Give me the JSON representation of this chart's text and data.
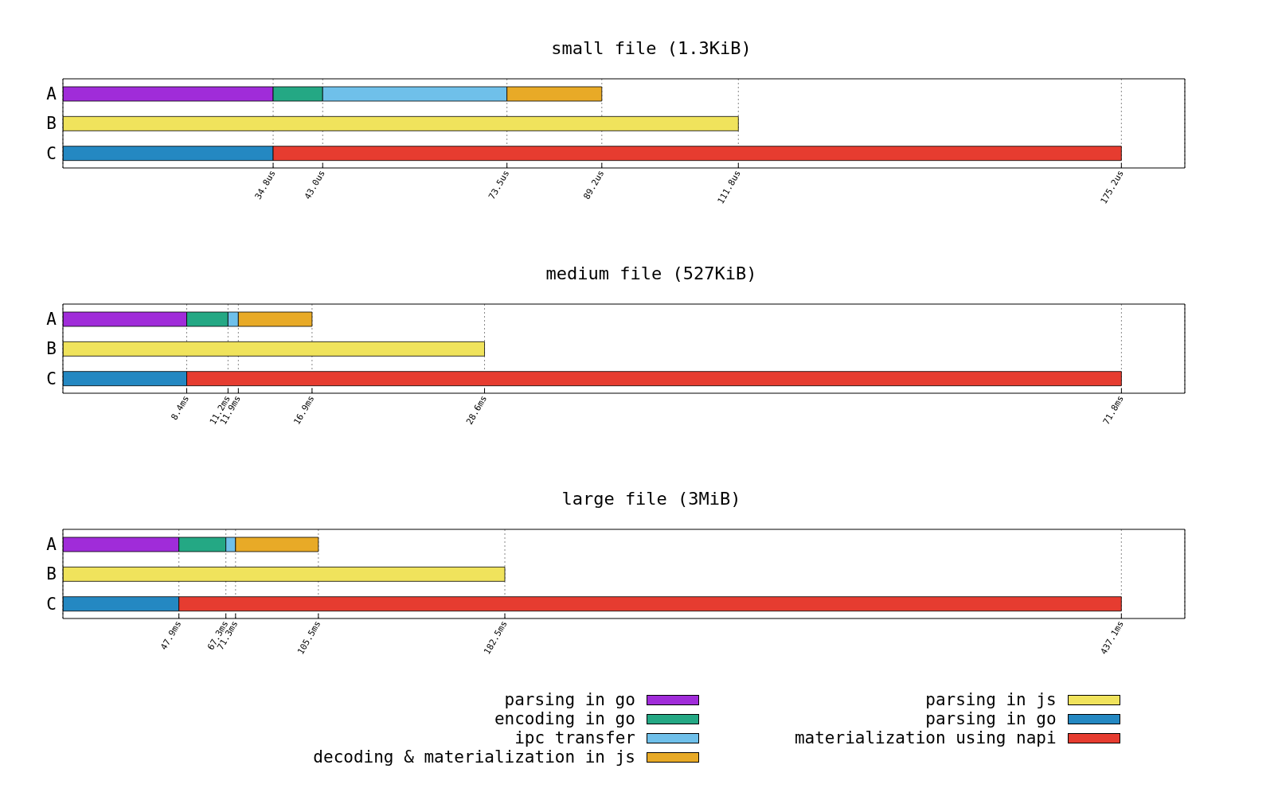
{
  "chart_data": [
    {
      "type": "bar",
      "title": "small file (1.3KiB)",
      "orientation": "horizontal",
      "stacked": true,
      "categories": [
        "A",
        "B",
        "C"
      ],
      "xlim": [
        0,
        185.7
      ],
      "xticks": [
        {
          "value": 34.8,
          "label": "34.8us"
        },
        {
          "value": 43.0,
          "label": "43.0us"
        },
        {
          "value": 73.5,
          "label": "73.5us"
        },
        {
          "value": 89.2,
          "label": "89.2us"
        },
        {
          "value": 111.8,
          "label": "111.8us"
        },
        {
          "value": 175.2,
          "label": "175.2us"
        }
      ],
      "grid": "x",
      "legend": false,
      "series": [
        {
          "color": "#a02cd9",
          "values": [
            34.8,
            null,
            null
          ]
        },
        {
          "color": "#24a884",
          "values": [
            8.2,
            null,
            null
          ]
        },
        {
          "color": "#6fc0ea",
          "values": [
            30.5,
            null,
            null
          ]
        },
        {
          "color": "#e8aa27",
          "values": [
            15.7,
            null,
            null
          ]
        },
        {
          "color": "#f0e35c",
          "values": [
            null,
            111.8,
            null
          ]
        },
        {
          "color": "#2488c2",
          "values": [
            null,
            null,
            34.8
          ]
        },
        {
          "color": "#e63c30",
          "values": [
            null,
            null,
            140.4
          ]
        }
      ]
    },
    {
      "type": "bar",
      "title": "medium file (527KiB)",
      "orientation": "horizontal",
      "stacked": true,
      "categories": [
        "A",
        "B",
        "C"
      ],
      "xlim": [
        0,
        76.1
      ],
      "xticks": [
        {
          "value": 8.4,
          "label": "8.4ms"
        },
        {
          "value": 11.2,
          "label": "11.2ms"
        },
        {
          "value": 11.9,
          "label": "11.9ms"
        },
        {
          "value": 16.9,
          "label": "16.9ms"
        },
        {
          "value": 28.6,
          "label": "28.6ms"
        },
        {
          "value": 71.8,
          "label": "71.8ms"
        }
      ],
      "grid": "x",
      "legend": false,
      "series": [
        {
          "color": "#a02cd9",
          "values": [
            8.4,
            null,
            null
          ]
        },
        {
          "color": "#24a884",
          "values": [
            2.8,
            null,
            null
          ]
        },
        {
          "color": "#6fc0ea",
          "values": [
            0.7,
            null,
            null
          ]
        },
        {
          "color": "#e8aa27",
          "values": [
            5.0,
            null,
            null
          ]
        },
        {
          "color": "#f0e35c",
          "values": [
            null,
            28.6,
            null
          ]
        },
        {
          "color": "#2488c2",
          "values": [
            null,
            null,
            8.4
          ]
        },
        {
          "color": "#e63c30",
          "values": [
            null,
            null,
            63.4
          ]
        }
      ]
    },
    {
      "type": "bar",
      "title": "large file (3MiB)",
      "orientation": "horizontal",
      "stacked": true,
      "categories": [
        "A",
        "B",
        "C"
      ],
      "xlim": [
        0,
        463.3
      ],
      "xticks": [
        {
          "value": 47.9,
          "label": "47.9ms"
        },
        {
          "value": 67.3,
          "label": "67.3ms"
        },
        {
          "value": 71.3,
          "label": "71.3ms"
        },
        {
          "value": 105.5,
          "label": "105.5ms"
        },
        {
          "value": 182.5,
          "label": "182.5ms"
        },
        {
          "value": 437.1,
          "label": "437.1ms"
        }
      ],
      "grid": "x",
      "legend": "bottom",
      "series": [
        {
          "name": "parsing in go",
          "color": "#a02cd9",
          "values": [
            47.9,
            null,
            null
          ]
        },
        {
          "name": "encoding in go",
          "color": "#24a884",
          "values": [
            19.4,
            null,
            null
          ]
        },
        {
          "name": "ipc transfer",
          "color": "#6fc0ea",
          "values": [
            4.0,
            null,
            null
          ]
        },
        {
          "name": "decoding & materialization in js",
          "color": "#e8aa27",
          "values": [
            34.2,
            null,
            null
          ]
        },
        {
          "name": "parsing in js",
          "color": "#f0e35c",
          "values": [
            null,
            182.5,
            null
          ]
        },
        {
          "name": "parsing in go",
          "color": "#2488c2",
          "values": [
            null,
            null,
            47.9
          ]
        },
        {
          "name": "materialization using napi",
          "color": "#e63c30",
          "values": [
            null,
            null,
            389.2
          ]
        }
      ]
    }
  ]
}
